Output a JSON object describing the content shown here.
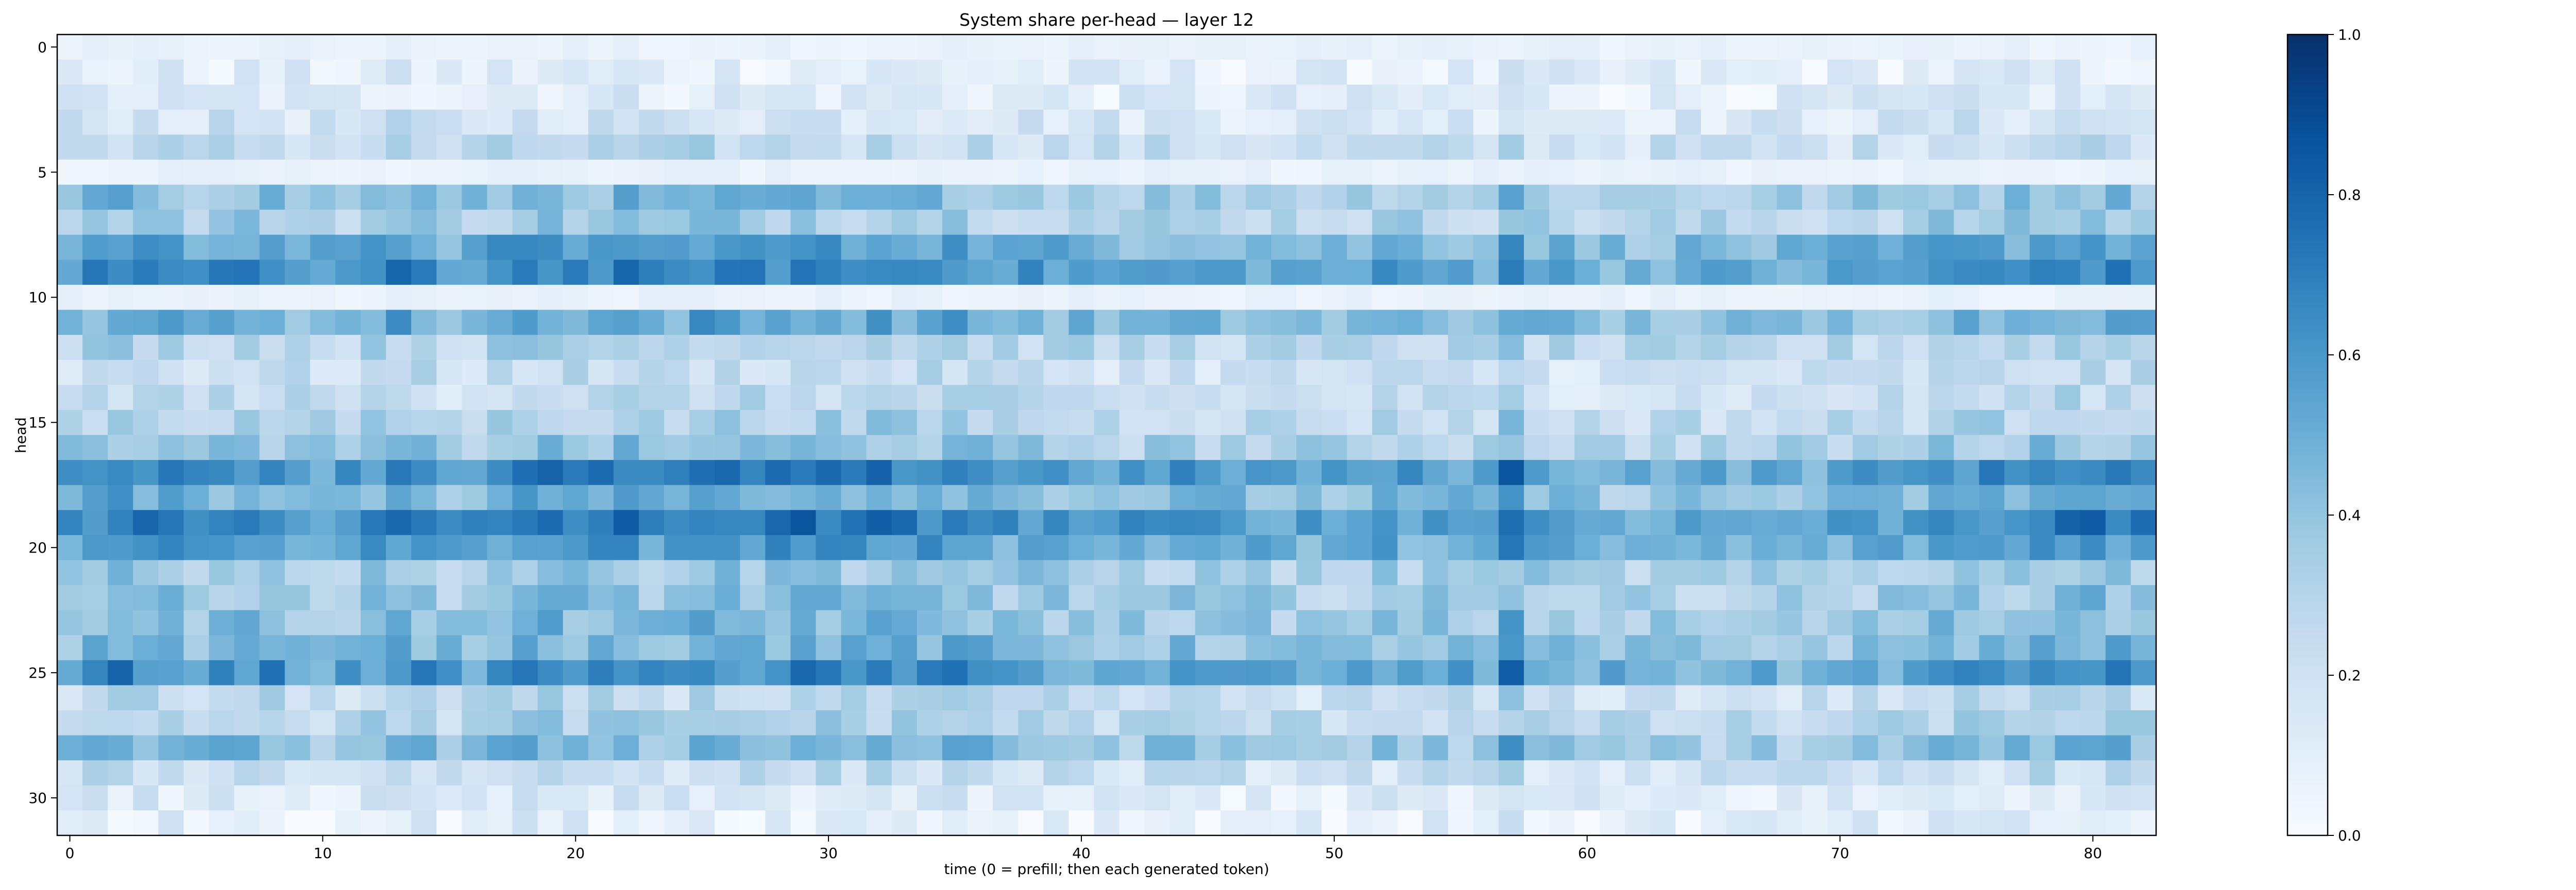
{
  "chart_data": {
    "type": "heatmap",
    "title": "System share per-head — layer 12",
    "xlabel": "time (0 = prefill; then each generated token)",
    "ylabel": "head",
    "n_rows": 32,
    "n_cols": 83,
    "x_ticks": [
      0,
      10,
      20,
      30,
      40,
      50,
      60,
      70,
      80
    ],
    "y_ticks": [
      0,
      5,
      10,
      15,
      20,
      25,
      30
    ],
    "colorbar": {
      "min": 0.0,
      "max": 1.0,
      "ticks": [
        0.0,
        0.2,
        0.4,
        0.6,
        0.8,
        1.0
      ],
      "tick_labels": [
        "0.0",
        "0.2",
        "0.4",
        "0.6",
        "0.8",
        "1.0"
      ],
      "colormap": "Blues",
      "colors": [
        "#f7fbff",
        "#deebf7",
        "#c6dbef",
        "#9ecae1",
        "#6baed6",
        "#4292c6",
        "#2171b5",
        "#08519c",
        "#08306b"
      ]
    },
    "row_profile": [
      0.08,
      0.1,
      0.12,
      0.18,
      0.24,
      0.06,
      0.4,
      0.34,
      0.52,
      0.6,
      0.07,
      0.48,
      0.3,
      0.22,
      0.24,
      0.3,
      0.36,
      0.62,
      0.46,
      0.64,
      0.55,
      0.36,
      0.38,
      0.4,
      0.44,
      0.58,
      0.24,
      0.3,
      0.42,
      0.22,
      0.12,
      0.1
    ],
    "column_profile": [
      0.38,
      0.48,
      0.62,
      0.58,
      0.46,
      0.4,
      0.48,
      0.52,
      0.54,
      0.4,
      0.34,
      0.38,
      0.44,
      0.58,
      0.5,
      0.34,
      0.4,
      0.5,
      0.56,
      0.6,
      0.52,
      0.52,
      0.58,
      0.42,
      0.46,
      0.62,
      0.54,
      0.5,
      0.52,
      0.64,
      0.52,
      0.46,
      0.56,
      0.54,
      0.52,
      0.54,
      0.5,
      0.38,
      0.4,
      0.38,
      0.36,
      0.34,
      0.34,
      0.36,
      0.38,
      0.34,
      0.36,
      0.34,
      0.32,
      0.3,
      0.28,
      0.3,
      0.38,
      0.36,
      0.34,
      0.34,
      0.32,
      0.7,
      0.36,
      0.32,
      0.28,
      0.26,
      0.26,
      0.3,
      0.28,
      0.26,
      0.26,
      0.26,
      0.26,
      0.28,
      0.3,
      0.32,
      0.34,
      0.36,
      0.5,
      0.46,
      0.44,
      0.44,
      0.56,
      0.58,
      0.56,
      0.52,
      0.46
    ]
  }
}
